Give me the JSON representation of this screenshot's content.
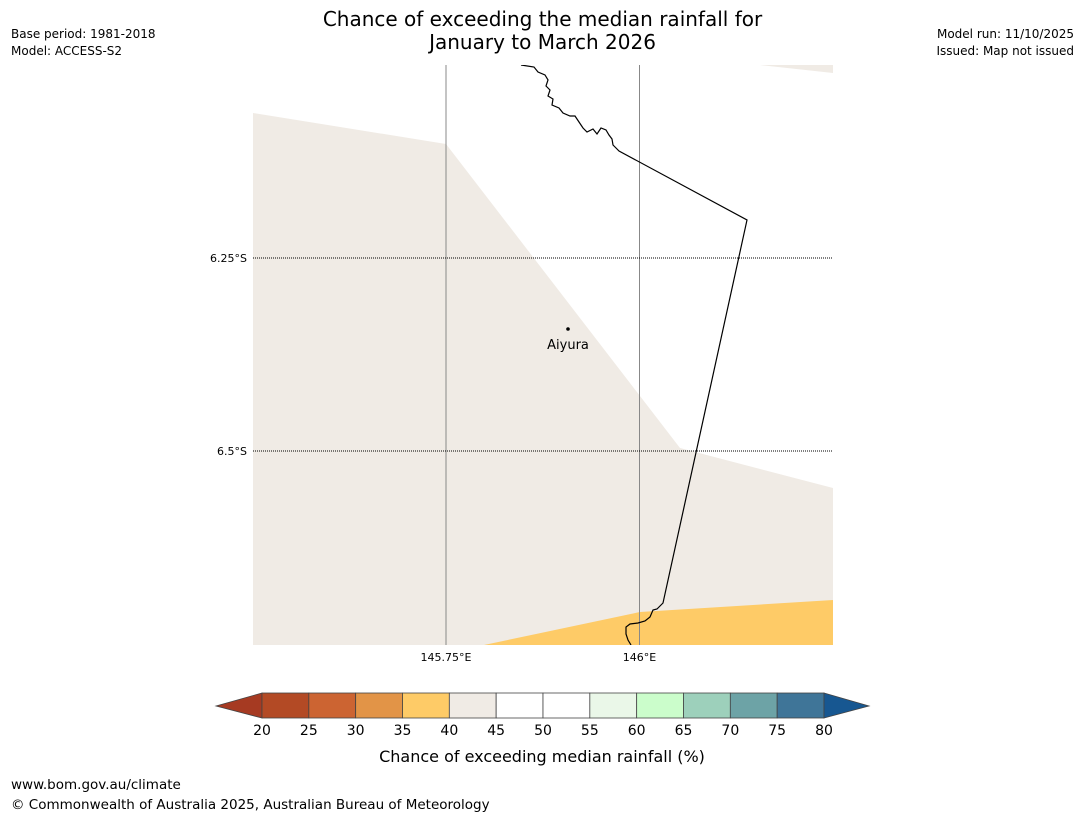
{
  "header": {
    "title_line1": "Chance of exceeding the median rainfall for",
    "title_line2": "January to March 2026",
    "base_period": "Base period: 1981-2018",
    "model": "Model: ACCESS-S2",
    "model_run": "Model run: 11/10/2025",
    "issued": "Issued: Map not issued"
  },
  "map": {
    "lat_labels": [
      "6.25°S",
      "6.5°S"
    ],
    "lon_labels": [
      "145.75°E",
      "146°E"
    ],
    "place": "Aiyura"
  },
  "legend": {
    "ticks": [
      "20",
      "25",
      "30",
      "35",
      "40",
      "45",
      "50",
      "55",
      "60",
      "65",
      "70",
      "75",
      "80"
    ],
    "colors": [
      "#a63a22",
      "#b34a25",
      "#cc6432",
      "#e29447",
      "#fecb67",
      "#f0ebe5",
      "#ffffff",
      "#ffffff",
      "#eaf7e8",
      "#cbfdcb",
      "#9dd0bb",
      "#6da3a6",
      "#3f7598",
      "#175791"
    ],
    "label": "Chance of exceeding median rainfall (%)"
  },
  "footer": {
    "url": "www.bom.gov.au/climate",
    "copyright": "© Commonwealth of Australia 2025, Australian Bureau of Meteorology"
  }
}
